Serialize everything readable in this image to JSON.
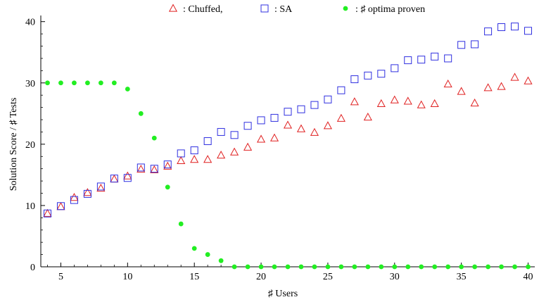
{
  "chart_data": {
    "type": "scatter",
    "title": "",
    "xlabel": "♯ Users",
    "ylabel": "Solution Score / ♯ Tests",
    "xlim": [
      3.5,
      40.5
    ],
    "ylim": [
      0,
      41
    ],
    "xticks": [
      5,
      10,
      15,
      20,
      25,
      30,
      35,
      40
    ],
    "yticks": [
      0,
      10,
      20,
      30,
      40
    ],
    "legend_position": "top-center",
    "grid": false,
    "series": [
      {
        "name": ": Chuffed,",
        "marker": "triangle",
        "color": "#e02020",
        "x": [
          4,
          5,
          6,
          7,
          8,
          9,
          10,
          11,
          12,
          13,
          14,
          15,
          16,
          17,
          18,
          19,
          20,
          21,
          22,
          23,
          24,
          25,
          26,
          27,
          28,
          29,
          30,
          31,
          32,
          33,
          34,
          35,
          36,
          37,
          38,
          39,
          40
        ],
        "y": [
          8.7,
          9.8,
          11.3,
          12.1,
          12.8,
          14.3,
          14.8,
          15.9,
          15.8,
          16.4,
          17.3,
          17.5,
          17.5,
          18.2,
          18.7,
          19.5,
          20.8,
          21.0,
          23.1,
          22.5,
          21.9,
          23.0,
          24.2,
          26.9,
          24.4,
          26.6,
          27.2,
          27.0,
          26.4,
          26.6,
          29.8,
          28.6,
          26.7,
          29.2,
          29.4,
          30.9,
          30.3
        ]
      },
      {
        "name": ": SA",
        "marker": "square",
        "color": "#3030e0",
        "x": [
          4,
          5,
          6,
          7,
          8,
          9,
          10,
          11,
          12,
          13,
          14,
          15,
          16,
          17,
          18,
          19,
          20,
          21,
          22,
          23,
          24,
          25,
          26,
          27,
          28,
          29,
          30,
          31,
          32,
          33,
          34,
          35,
          36,
          37,
          38,
          39,
          40
        ],
        "y": [
          8.7,
          9.9,
          10.9,
          11.9,
          13.1,
          14.4,
          14.5,
          16.2,
          16.0,
          16.7,
          18.5,
          19.0,
          20.5,
          22.0,
          21.5,
          23.0,
          23.9,
          24.3,
          25.3,
          25.7,
          26.4,
          27.3,
          28.8,
          30.6,
          31.2,
          31.5,
          32.4,
          33.7,
          33.8,
          34.3,
          34.0,
          36.2,
          36.3,
          38.4,
          39.1,
          39.2,
          38.5
        ]
      },
      {
        "name": ": ♯ optima proven",
        "marker": "circle",
        "color": "#22ee22",
        "x": [
          4,
          5,
          6,
          7,
          8,
          9,
          10,
          11,
          12,
          13,
          14,
          15,
          16,
          17,
          18,
          19,
          20,
          21,
          22,
          23,
          24,
          25,
          26,
          27,
          28,
          29,
          30,
          31,
          32,
          33,
          34,
          35,
          36,
          37,
          38,
          39,
          40
        ],
        "y": [
          30,
          30,
          30,
          30,
          30,
          30,
          29,
          25,
          21,
          13,
          7,
          3,
          2,
          1,
          0,
          0,
          0,
          0,
          0,
          0,
          0,
          0,
          0,
          0,
          0,
          0,
          0,
          0,
          0,
          0,
          0,
          0,
          0,
          0,
          0,
          0,
          0
        ]
      }
    ]
  }
}
